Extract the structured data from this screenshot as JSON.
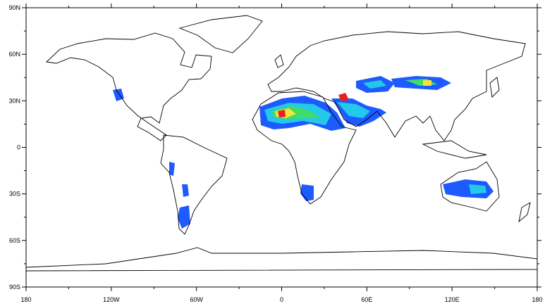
{
  "map": {
    "x_axis": {
      "ticks": [
        {
          "value": -180,
          "label": "180"
        },
        {
          "value": -120,
          "label": "120W"
        },
        {
          "value": -60,
          "label": "60W"
        },
        {
          "value": 0,
          "label": "0"
        },
        {
          "value": 60,
          "label": "60E"
        },
        {
          "value": 120,
          "label": "120E"
        },
        {
          "value": 180,
          "label": "180"
        }
      ]
    },
    "y_axis": {
      "ticks": [
        {
          "value": 90,
          "label": "90N"
        },
        {
          "value": 60,
          "label": "60N"
        },
        {
          "value": 30,
          "label": "30N"
        },
        {
          "value": 0,
          "label": "0"
        },
        {
          "value": -30,
          "label": "30S"
        },
        {
          "value": -60,
          "label": "60S"
        },
        {
          "value": -90,
          "label": "90S"
        }
      ]
    }
  }
}
